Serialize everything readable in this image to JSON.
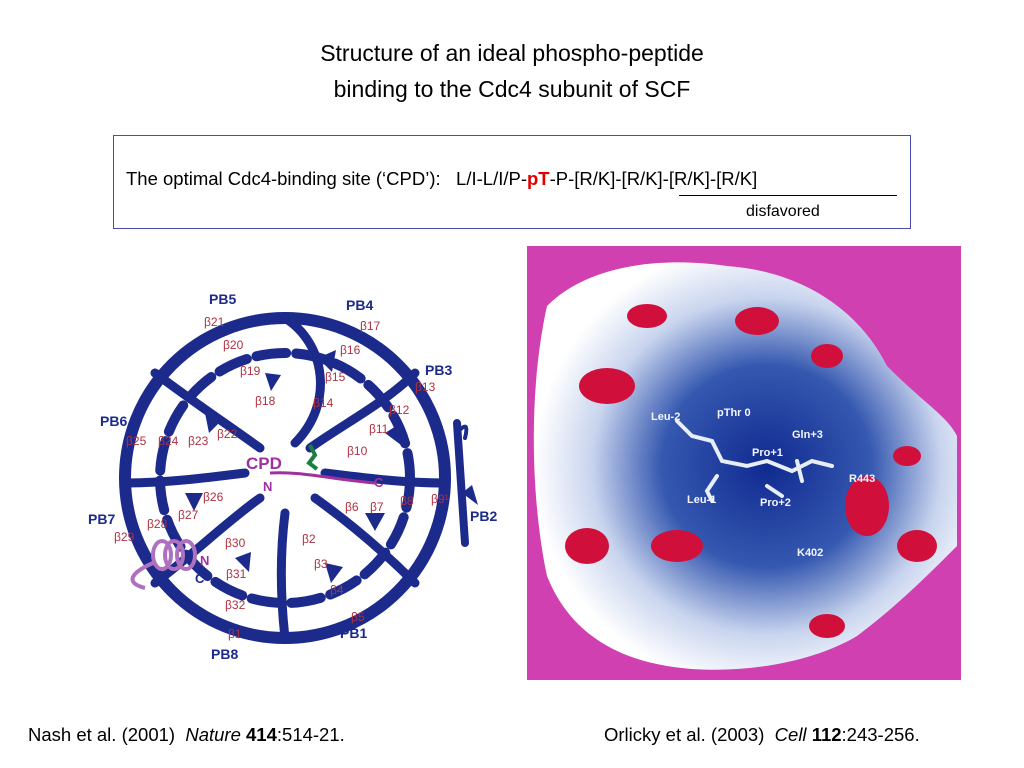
{
  "title": {
    "line1": "Structure of an ideal phospho-peptide",
    "line2": "binding to the Cdc4 subunit of SCF"
  },
  "motif_box": {
    "label": "The optimal Cdc4-binding site (‘CPD’):",
    "seq_prefix": "L/I-L/I/P-",
    "seq_pT": "pT",
    "seq_suffix": "-P-[R/K]-[R/K]-[R/K]-[R/K]",
    "disfavored": "disfavored",
    "accent_color": "#e00000"
  },
  "left_figure": {
    "blades": [
      "PB1",
      "PB2",
      "PB3",
      "PB4",
      "PB5",
      "PB6",
      "PB7",
      "PB8"
    ],
    "strands": [
      "β1",
      "β2",
      "β3",
      "β4",
      "β5",
      "β6",
      "β7",
      "β8",
      "β9",
      "β10",
      "β11",
      "β12",
      "β13",
      "β14",
      "β15",
      "β16",
      "β17",
      "β18",
      "β19",
      "β20",
      "β21",
      "β22",
      "β23",
      "β24",
      "β25",
      "β26",
      "β27",
      "β28",
      "β29",
      "β30",
      "β31",
      "β32"
    ],
    "special_strand": "β9¹",
    "cpd_label": "CPD",
    "n_label": "N",
    "c_label": "C",
    "helix_n": "N",
    "helix_c": "C",
    "ribbon_color": "#1c2a8c",
    "strand_label_color": "#b03040",
    "cpd_color": "#a030a0"
  },
  "right_figure": {
    "labels": [
      "Leu-2",
      "pThr 0",
      "Pro+1",
      "Gln+3",
      "Leu-1",
      "Pro+2",
      "R443",
      "K402"
    ],
    "background_color": "#d040b0"
  },
  "citations": {
    "left": {
      "authors": "Nash et al. (2001)",
      "journal": "Nature",
      "volume": "414",
      "pages": ":514-21."
    },
    "right": {
      "authors": "Orlicky et al. (2003)",
      "journal": "Cell",
      "volume": "112",
      "pages": ":243-256."
    }
  }
}
